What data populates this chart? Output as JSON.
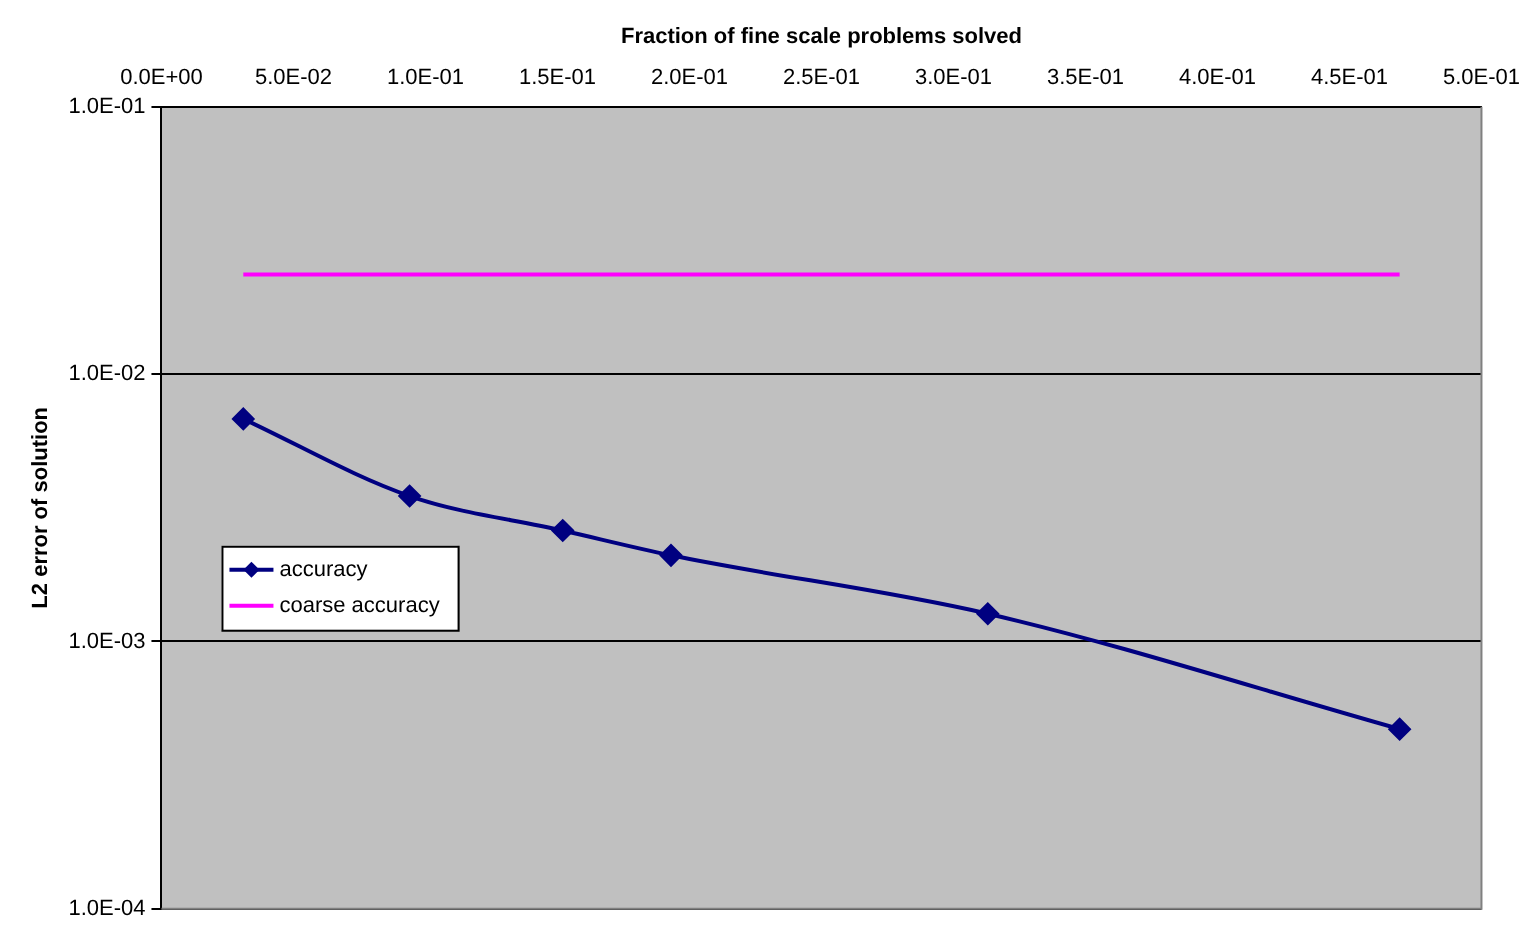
{
  "chart_data": {
    "type": "line",
    "xlabel": "Fraction of fine scale problems solved",
    "ylabel": "L2 error of solution",
    "log": "y",
    "grid": "y",
    "legend": "left",
    "line_style": "solid",
    "xlim": [
      0,
      0.5
    ],
    "xticks": [
      {
        "value": 0,
        "label": "0.0E+00"
      },
      {
        "value": 0.05,
        "label": "5.0E-02"
      },
      {
        "value": 0.1,
        "label": "1.0E-01"
      },
      {
        "value": 0.15,
        "label": "1.5E-01"
      },
      {
        "value": 0.2,
        "label": "2.0E-01"
      },
      {
        "value": 0.25,
        "label": "2.5E-01"
      },
      {
        "value": 0.3,
        "label": "3.0E-01"
      },
      {
        "value": 0.35,
        "label": "3.5E-01"
      },
      {
        "value": 0.4,
        "label": "4.0E-01"
      },
      {
        "value": 0.45,
        "label": "4.5E-01"
      },
      {
        "value": 0.5,
        "label": "5.0E-01"
      }
    ],
    "ylim": [
      0.0001,
      0.1
    ],
    "yticks": [
      {
        "value": 0.0001,
        "label": "1.0E-04"
      },
      {
        "value": 0.001,
        "label": "1.0E-03"
      },
      {
        "value": 0.01,
        "label": "1.0E-02"
      },
      {
        "value": 0.1,
        "label": "1.0E-01"
      }
    ],
    "series": [
      {
        "name": "accuracy",
        "color": "#000080",
        "marker": "diamond",
        "x": [
          0.031,
          0.094,
          0.152,
          0.193,
          0.313,
          0.469
        ],
        "values": [
          0.0068,
          0.0035,
          0.0026,
          0.0021,
          0.00127,
          0.00047
        ]
      },
      {
        "name": "coarse accuracy",
        "color": "#ff00ff",
        "marker": "none",
        "x": [
          0.031,
          0.469
        ],
        "values": [
          0.0236,
          0.0236
        ]
      }
    ]
  }
}
